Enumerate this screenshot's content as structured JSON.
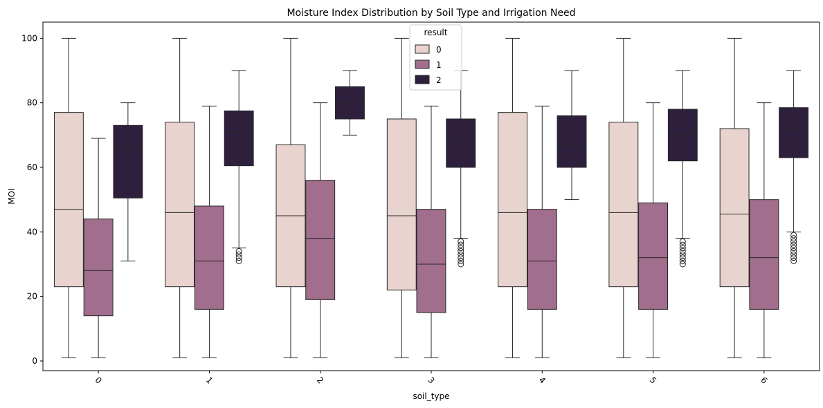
{
  "chart_data": {
    "type": "box",
    "title": "Moisture Index Distribution by Soil Type and Irrigation Need",
    "xlabel": "soil_type",
    "ylabel": "MOI",
    "ylim": [
      -3,
      105
    ],
    "yticks": [
      0,
      20,
      40,
      60,
      80,
      100
    ],
    "categories": [
      "0",
      "1",
      "2",
      "3",
      "4",
      "5",
      "6"
    ],
    "legend": {
      "title": "result",
      "placement": "top-center"
    },
    "series": [
      {
        "name": "0",
        "color": "#e8d3cf",
        "boxes": [
          {
            "whislo": 1,
            "q1": 23,
            "med": 47,
            "q3": 77,
            "whishi": 100,
            "fliers": []
          },
          {
            "whislo": 1,
            "q1": 23,
            "med": 46,
            "q3": 74,
            "whishi": 100,
            "fliers": []
          },
          {
            "whislo": 1,
            "q1": 23,
            "med": 45,
            "q3": 67,
            "whishi": 100,
            "fliers": []
          },
          {
            "whislo": 1,
            "q1": 22,
            "med": 45,
            "q3": 75,
            "whishi": 100,
            "fliers": []
          },
          {
            "whislo": 1,
            "q1": 23,
            "med": 46,
            "q3": 77,
            "whishi": 100,
            "fliers": []
          },
          {
            "whislo": 1,
            "q1": 23,
            "med": 46,
            "q3": 74,
            "whishi": 100,
            "fliers": []
          },
          {
            "whislo": 1,
            "q1": 23,
            "med": 45.5,
            "q3": 72,
            "whishi": 100,
            "fliers": []
          }
        ]
      },
      {
        "name": "1",
        "color": "#a26e8d",
        "boxes": [
          {
            "whislo": 1,
            "q1": 14,
            "med": 28,
            "q3": 44,
            "whishi": 69,
            "fliers": []
          },
          {
            "whislo": 1,
            "q1": 16,
            "med": 31,
            "q3": 48,
            "whishi": 79,
            "fliers": []
          },
          {
            "whislo": 1,
            "q1": 19,
            "med": 38,
            "q3": 56,
            "whishi": 80,
            "fliers": []
          },
          {
            "whislo": 1,
            "q1": 15,
            "med": 30,
            "q3": 47,
            "whishi": 79,
            "fliers": []
          },
          {
            "whislo": 1,
            "q1": 16,
            "med": 31,
            "q3": 47,
            "whishi": 79,
            "fliers": []
          },
          {
            "whislo": 1,
            "q1": 16,
            "med": 32,
            "q3": 49,
            "whishi": 80,
            "fliers": []
          },
          {
            "whislo": 1,
            "q1": 16,
            "med": 32,
            "q3": 50,
            "whishi": 80,
            "fliers": []
          }
        ]
      },
      {
        "name": "2",
        "color": "#2e1f3d",
        "boxes": [
          {
            "whislo": 31,
            "q1": 50.5,
            "med": 65,
            "q3": 73,
            "whishi": 80,
            "fliers": []
          },
          {
            "whislo": 35,
            "q1": 60.5,
            "med": 71,
            "q3": 77.5,
            "whishi": 90,
            "fliers": [
              34,
              33,
              32,
              31
            ]
          },
          {
            "whislo": 70,
            "q1": 75,
            "med": 80,
            "q3": 85,
            "whishi": 90,
            "fliers": []
          },
          {
            "whislo": 38,
            "q1": 60,
            "med": 68,
            "q3": 75,
            "whishi": 90,
            "fliers": [
              37,
              36,
              35,
              34,
              33,
              32,
              31,
              30
            ]
          },
          {
            "whislo": 50,
            "q1": 60,
            "med": 67,
            "q3": 76,
            "whishi": 90,
            "fliers": []
          },
          {
            "whislo": 38,
            "q1": 62,
            "med": 70,
            "q3": 78,
            "whishi": 90,
            "fliers": [
              37,
              36,
              35,
              34,
              33,
              32,
              31,
              30
            ]
          },
          {
            "whislo": 40,
            "q1": 63,
            "med": 72,
            "q3": 78.5,
            "whishi": 90,
            "fliers": [
              39,
              38,
              37,
              36,
              35,
              34,
              33,
              32,
              31
            ]
          }
        ]
      }
    ]
  }
}
